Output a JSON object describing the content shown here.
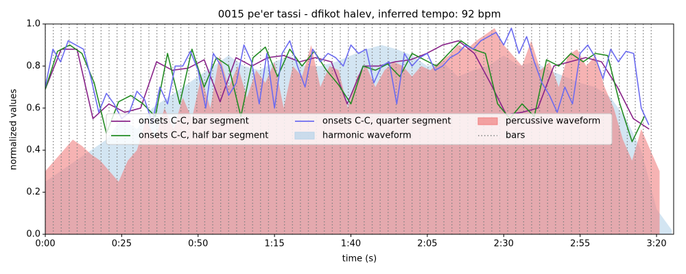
{
  "chart_data": {
    "type": "line",
    "title": "0015 pe'er tassi - dfikot halev, inferred tempo: 92 bpm",
    "xlabel": "time (s)",
    "ylabel": "normalized values",
    "xlim": [
      0,
      205.6
    ],
    "ylim": [
      0,
      1
    ],
    "xticks": [
      {
        "value": 0,
        "label": "0:00"
      },
      {
        "value": 25,
        "label": "0:25"
      },
      {
        "value": 50,
        "label": "0:50"
      },
      {
        "value": 75,
        "label": "1:15"
      },
      {
        "value": 100,
        "label": "1:40"
      },
      {
        "value": 125,
        "label": "2:05"
      },
      {
        "value": 150,
        "label": "2:30"
      },
      {
        "value": 175,
        "label": "2:55"
      },
      {
        "value": 200,
        "label": "3:20"
      }
    ],
    "yticks": [
      {
        "value": 0,
        "label": "0.0"
      },
      {
        "value": 0.2,
        "label": "0.2"
      },
      {
        "value": 0.4,
        "label": "0.4"
      },
      {
        "value": 0.6,
        "label": "0.6"
      },
      {
        "value": 0.8,
        "label": "0.8"
      },
      {
        "value": 1,
        "label": "1.0"
      }
    ],
    "legend": "center",
    "series": [
      {
        "name": "onsets C-C, bar segment",
        "color": "#882288",
        "type": "line",
        "x": [
          0,
          5.2,
          10.4,
          15.6,
          20.8,
          26,
          31.2,
          36.4,
          41.6,
          46.8,
          52,
          57.2,
          62.4,
          67.6,
          72.8,
          78,
          83.2,
          88.4,
          93.6,
          98.8,
          104,
          109.2,
          114.4,
          119.6,
          124.8,
          130,
          135.2,
          140.4,
          145.6,
          150.8,
          156,
          161.2,
          166.4,
          171.6,
          176.8,
          182,
          187.2,
          192.4,
          197.6
        ],
        "values": [
          0.69,
          0.88,
          0.88,
          0.55,
          0.62,
          0.58,
          0.6,
          0.82,
          0.78,
          0.79,
          0.83,
          0.63,
          0.84,
          0.8,
          0.84,
          0.85,
          0.82,
          0.84,
          0.82,
          0.62,
          0.8,
          0.8,
          0.82,
          0.83,
          0.86,
          0.9,
          0.92,
          0.86,
          0.72,
          0.57,
          0.58,
          0.6,
          0.8,
          0.82,
          0.84,
          0.82,
          0.7,
          0.55,
          0.5
        ]
      },
      {
        "name": "onsets C-C, half bar segment",
        "color": "#228b22",
        "type": "line",
        "x": [
          0,
          4,
          8,
          12,
          16,
          20,
          24,
          28,
          32,
          36,
          40,
          44,
          48,
          52,
          56,
          60,
          64,
          68,
          72,
          76,
          80,
          84,
          88,
          92,
          96,
          100,
          104,
          108,
          112,
          116,
          120,
          124,
          128,
          132,
          136,
          140,
          144,
          148,
          152,
          156,
          160,
          164,
          168,
          172,
          176,
          180,
          184,
          188,
          192,
          196
        ],
        "values": [
          0.69,
          0.87,
          0.9,
          0.86,
          0.72,
          0.48,
          0.63,
          0.66,
          0.62,
          0.56,
          0.86,
          0.62,
          0.88,
          0.7,
          0.84,
          0.8,
          0.56,
          0.84,
          0.89,
          0.75,
          0.88,
          0.8,
          0.87,
          0.78,
          0.71,
          0.62,
          0.8,
          0.78,
          0.81,
          0.75,
          0.86,
          0.83,
          0.8,
          0.86,
          0.92,
          0.88,
          0.86,
          0.62,
          0.55,
          0.62,
          0.56,
          0.83,
          0.8,
          0.86,
          0.82,
          0.86,
          0.85,
          0.62,
          0.44,
          0.56
        ]
      },
      {
        "name": "onsets C-C, quarter segment",
        "color": "#6b6bf0",
        "type": "line",
        "x": [
          0,
          2.5,
          5,
          7.5,
          10,
          12.5,
          15,
          17.5,
          20,
          22.5,
          25,
          27.5,
          30,
          32.5,
          35,
          37.5,
          40,
          42.5,
          45,
          47.5,
          50,
          52.5,
          55,
          57.5,
          60,
          62.5,
          65,
          67.5,
          70,
          72.5,
          75,
          77.5,
          80,
          82.5,
          85,
          87.5,
          90,
          92.5,
          95,
          97.5,
          100,
          102.5,
          105,
          107.5,
          110,
          112.5,
          115,
          117.5,
          120,
          122.5,
          125,
          127.5,
          130,
          132.5,
          135,
          137.5,
          140,
          142.5,
          145,
          147.5,
          150,
          152.5,
          155,
          157.5,
          160,
          162.5,
          165,
          167.5,
          170,
          172.5,
          175,
          177.5,
          180,
          182.5,
          185,
          187.5,
          190,
          192.5,
          195,
          197.5
        ],
        "values": [
          0.7,
          0.88,
          0.82,
          0.92,
          0.9,
          0.88,
          0.74,
          0.58,
          0.67,
          0.62,
          0.55,
          0.58,
          0.68,
          0.64,
          0.53,
          0.7,
          0.62,
          0.8,
          0.8,
          0.87,
          0.78,
          0.6,
          0.86,
          0.8,
          0.66,
          0.72,
          0.9,
          0.82,
          0.62,
          0.86,
          0.6,
          0.86,
          0.92,
          0.8,
          0.7,
          0.88,
          0.82,
          0.86,
          0.84,
          0.8,
          0.9,
          0.86,
          0.88,
          0.72,
          0.8,
          0.82,
          0.62,
          0.86,
          0.8,
          0.84,
          0.86,
          0.78,
          0.8,
          0.84,
          0.86,
          0.9,
          0.88,
          0.92,
          0.94,
          0.96,
          0.9,
          0.98,
          0.86,
          0.94,
          0.82,
          0.72,
          0.66,
          0.58,
          0.7,
          0.62,
          0.86,
          0.9,
          0.84,
          0.74,
          0.88,
          0.82,
          0.87,
          0.86,
          0.6,
          0.52
        ]
      },
      {
        "name": "harmonic waveform",
        "color": "#b5d3ea",
        "type": "area",
        "x": [
          0,
          5,
          10,
          15,
          20,
          25,
          30,
          35,
          40,
          45,
          50,
          55,
          60,
          65,
          70,
          75,
          80,
          85,
          90,
          95,
          100,
          105,
          110,
          115,
          120,
          125,
          130,
          135,
          140,
          145,
          150,
          155,
          160,
          165,
          170,
          175,
          180,
          185,
          190,
          195,
          200,
          205
        ],
        "values": [
          0.25,
          0.3,
          0.35,
          0.4,
          0.45,
          0.55,
          0.5,
          0.6,
          0.65,
          0.7,
          0.75,
          0.8,
          0.85,
          0.8,
          0.78,
          0.82,
          0.85,
          0.8,
          0.8,
          0.82,
          0.85,
          0.88,
          0.9,
          0.88,
          0.85,
          0.8,
          0.82,
          0.75,
          0.78,
          0.8,
          0.85,
          0.8,
          0.82,
          0.78,
          0.75,
          0.72,
          0.7,
          0.65,
          0.55,
          0.4,
          0.12,
          0.02
        ]
      },
      {
        "name": "percussive waveform",
        "color": "#f08080",
        "type": "area",
        "x": [
          0,
          3,
          6,
          9,
          12,
          15,
          18,
          21,
          24,
          27,
          30,
          33,
          36,
          39,
          42,
          45,
          48,
          51,
          54,
          57,
          60,
          63,
          66,
          69,
          72,
          75,
          78,
          81,
          84,
          87,
          90,
          93,
          96,
          99,
          102,
          105,
          108,
          111,
          114,
          117,
          120,
          123,
          126,
          129,
          132,
          135,
          138,
          141,
          144,
          147,
          150,
          153,
          156,
          159,
          162,
          165,
          168,
          171,
          174,
          177,
          180,
          183,
          186,
          189,
          192,
          195,
          198,
          201
        ],
        "values": [
          0.3,
          0.35,
          0.4,
          0.45,
          0.42,
          0.38,
          0.35,
          0.3,
          0.25,
          0.35,
          0.4,
          0.55,
          0.45,
          0.6,
          0.5,
          0.65,
          0.55,
          0.75,
          0.6,
          0.85,
          0.7,
          0.8,
          0.65,
          0.78,
          0.72,
          0.82,
          0.6,
          0.8,
          0.75,
          0.9,
          0.7,
          0.8,
          0.78,
          0.6,
          0.75,
          0.8,
          0.7,
          0.78,
          0.82,
          0.8,
          0.75,
          0.8,
          0.78,
          0.82,
          0.85,
          0.9,
          0.88,
          0.92,
          0.95,
          0.98,
          0.9,
          0.85,
          0.8,
          0.92,
          0.78,
          0.82,
          0.7,
          0.85,
          0.88,
          0.8,
          0.85,
          0.7,
          0.6,
          0.45,
          0.35,
          0.5,
          0.4,
          0.3
        ]
      }
    ],
    "bars": {
      "name": "bars",
      "color": "#808080",
      "x": [
        0,
        2.61,
        5.22,
        7.83,
        10.43,
        13.04,
        15.65,
        18.26,
        20.87,
        23.48,
        26.09,
        28.7,
        31.3,
        33.91,
        36.52,
        39.13,
        41.74,
        44.35,
        46.96,
        49.57,
        52.17,
        54.78,
        57.39,
        60,
        62.61,
        65.22,
        67.83,
        70.43,
        73.04,
        75.65,
        78.26,
        80.87,
        83.48,
        86.09,
        88.7,
        91.3,
        93.91,
        96.52,
        99.13,
        101.74,
        104.35,
        106.96,
        109.57,
        112.17,
        114.78,
        117.39,
        120,
        122.61,
        125.22,
        127.83,
        130.43,
        133.04,
        135.65,
        138.26,
        140.87,
        143.48,
        146.09,
        148.7,
        151.3,
        153.91,
        156.52,
        159.13,
        161.74,
        164.35,
        166.96,
        169.57,
        172.17,
        174.78,
        177.39,
        180,
        182.61,
        185.22,
        187.83,
        190.43,
        193.04,
        195.65,
        198.26
      ]
    }
  }
}
